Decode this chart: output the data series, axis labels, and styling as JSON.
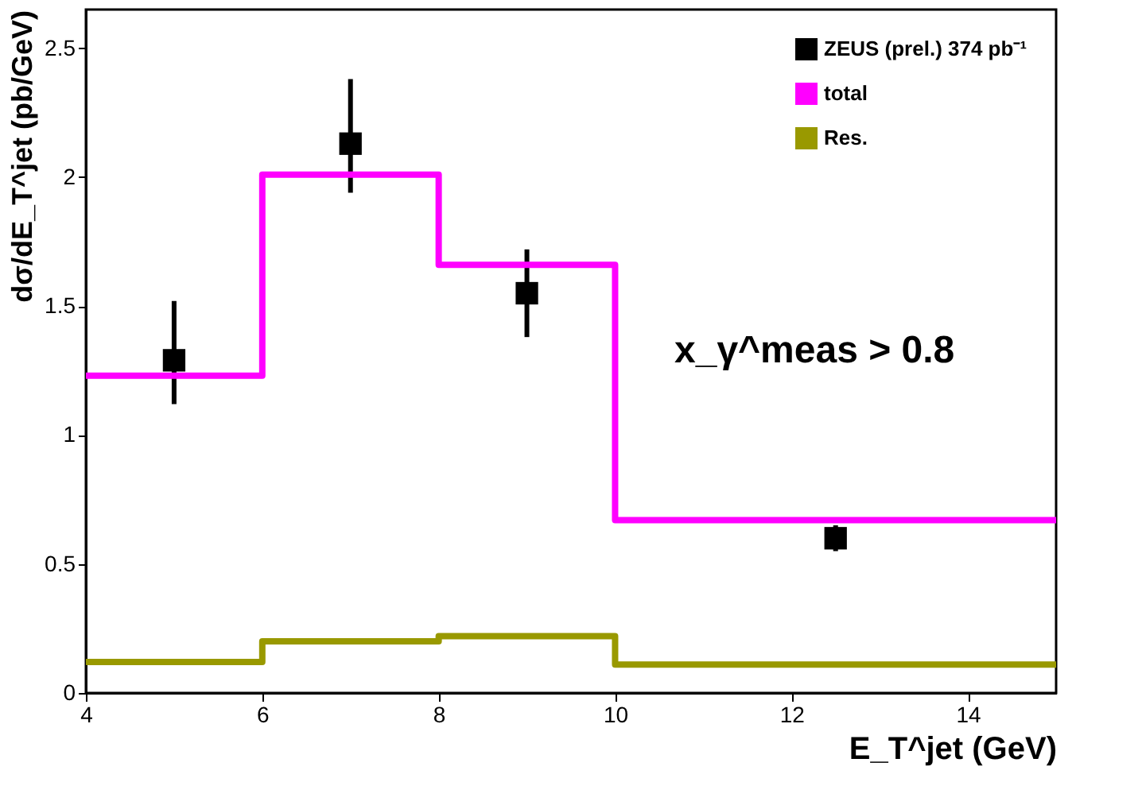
{
  "chart_data": {
    "type": "line",
    "xlabel": "E_T^jet (GeV)",
    "ylabel": "dσ/dE_T^jet (pb/GeV)",
    "xlim": [
      4,
      15
    ],
    "xticks": [
      4,
      6,
      8,
      10,
      12,
      14
    ],
    "ylim": [
      0,
      2.65
    ],
    "yticks": [
      0,
      0.5,
      1,
      1.5,
      2,
      2.5
    ],
    "grid": false,
    "legend": "top right",
    "annotations": [
      "x_γ^meas > 0.8"
    ],
    "series": [
      {
        "name": "ZEUS (prel.) 374 pb⁻¹",
        "type": "scatter",
        "marker": "square",
        "color": "#000000",
        "x": [
          5,
          7,
          9,
          12.5
        ],
        "values": [
          1.29,
          2.13,
          1.55,
          0.6
        ],
        "errors": [
          [
            1.12,
            1.52
          ],
          [
            1.94,
            2.38
          ],
          [
            1.38,
            1.72
          ],
          [
            0.55,
            0.65
          ]
        ]
      },
      {
        "name": "total",
        "type": "step",
        "color": "#ff00ff",
        "x": [
          4,
          6,
          8,
          10,
          15
        ],
        "values": [
          1.23,
          2.01,
          1.66,
          0.67,
          0.67
        ]
      },
      {
        "name": "Res.",
        "type": "step",
        "color": "#999900",
        "x": [
          4,
          6,
          8,
          10,
          15
        ],
        "values": [
          0.12,
          0.2,
          0.22,
          0.11,
          0.11
        ]
      }
    ]
  }
}
